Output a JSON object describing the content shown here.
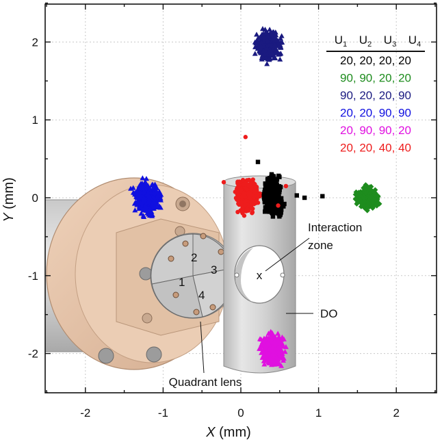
{
  "chart_data": {
    "type": "scatter",
    "xlabel_var": "X",
    "xlabel_unit": " (mm)",
    "ylabel_var": "Y",
    "ylabel_unit": " (mm)",
    "xlim": [
      -2.5,
      2.5
    ],
    "ylim": [
      -2.5,
      2.5
    ],
    "xticks": [
      -2,
      -1,
      0,
      1,
      2
    ],
    "yticks": [
      -2,
      -1,
      0,
      1,
      2
    ],
    "x_tick_labels": [
      "-2",
      "-1",
      "0",
      "1",
      "2"
    ],
    "y_tick_labels": [
      "-2",
      "-1",
      "0",
      "1",
      "2"
    ],
    "grid": true,
    "legend": {
      "placement": "top-right",
      "header": [
        "U1",
        "U2",
        "U3",
        "U4"
      ],
      "entries": [
        {
          "text": "20, 20, 20, 20",
          "color": "#000000"
        },
        {
          "text": "90, 90, 20, 20",
          "color": "#1e8c1e"
        },
        {
          "text": "90, 20, 20, 90",
          "color": "#1a1a80"
        },
        {
          "text": "20, 20, 90, 90",
          "color": "#1010e0"
        },
        {
          "text": "20, 90, 90, 20",
          "color": "#e010e0"
        },
        {
          "text": "20, 20, 40, 40",
          "color": "#ee1c1c"
        }
      ]
    },
    "series": [
      {
        "voltages": "20, 20, 20, 20",
        "color": "#000000",
        "marker": "square",
        "center": [
          0.41,
          0.02
        ],
        "spread": [
          0.17,
          0.32
        ]
      },
      {
        "voltages": "90, 90, 20, 20",
        "color": "#1e8c1e",
        "marker": "diamond",
        "center": [
          1.64,
          0.0
        ],
        "spread": [
          0.19,
          0.17
        ]
      },
      {
        "voltages": "90, 20, 20, 90",
        "color": "#1a1a80",
        "marker": "triangle",
        "center": [
          0.36,
          1.95
        ],
        "spread": [
          0.21,
          0.26
        ]
      },
      {
        "voltages": "20, 20, 90, 90",
        "color": "#1010e0",
        "marker": "triangle",
        "center": [
          -1.2,
          0.0
        ],
        "spread": [
          0.24,
          0.28
        ]
      },
      {
        "voltages": "20, 90, 90, 20",
        "color": "#e010e0",
        "marker": "triangle",
        "center": [
          0.41,
          -1.95
        ],
        "spread": [
          0.2,
          0.27
        ]
      },
      {
        "voltages": "20, 20, 40, 40",
        "color": "#ee1c1c",
        "marker": "circle",
        "center": [
          0.08,
          0.03
        ],
        "spread": [
          0.2,
          0.3
        ]
      }
    ],
    "annotations": {
      "interaction_zone_line1": "Interaction",
      "interaction_zone_line2": "zone",
      "do_label": "DO",
      "quadrant_lens_label": "Quadrant lens",
      "interaction_marker": "x",
      "lens_segments": [
        "1",
        "2",
        "3",
        "4"
      ]
    }
  }
}
